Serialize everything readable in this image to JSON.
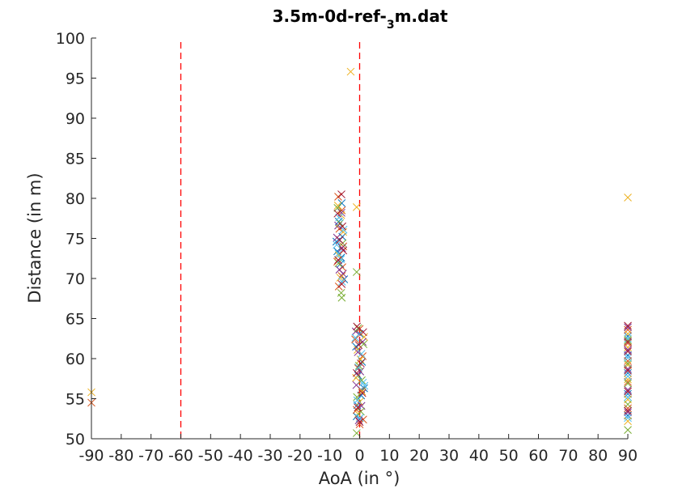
{
  "chart_data": {
    "type": "scatter",
    "title": {
      "prefix": "3.5m-0d-ref-",
      "sub": "3",
      "suffix": "m.dat"
    },
    "xlabel": "AoA (in °)",
    "ylabel": "Distance (in m)",
    "xlim": [
      -90,
      90
    ],
    "ylim": [
      50,
      100
    ],
    "xticks": [
      -90,
      -80,
      -70,
      -60,
      -50,
      -40,
      -30,
      -20,
      -10,
      0,
      10,
      20,
      30,
      40,
      50,
      60,
      70,
      80,
      90
    ],
    "yticks": [
      50,
      55,
      60,
      65,
      70,
      75,
      80,
      85,
      90,
      95,
      100
    ],
    "grid": false,
    "marker": "x",
    "reference_lines": [
      {
        "x": -60,
        "color": "#ff0000",
        "style": "dashed"
      },
      {
        "x": 0,
        "color": "#ff0000",
        "style": "dashed"
      }
    ],
    "palette": [
      "#0072bd",
      "#d95319",
      "#edb120",
      "#7e2f8e",
      "#77ac30",
      "#4dbeee",
      "#a2142f"
    ],
    "series": [
      {
        "color": "#0072bd",
        "points": [
          [
            -6.5,
            71.8
          ],
          [
            -7.5,
            73.4
          ],
          [
            -5.8,
            75.2
          ],
          [
            -7,
            77.1
          ],
          [
            -6.2,
            72.6
          ],
          [
            -5.2,
            69.9
          ],
          [
            -7.8,
            74.6
          ],
          [
            -6,
            79.4
          ],
          [
            -1,
            52.8
          ],
          [
            0.5,
            55.4
          ],
          [
            -0.5,
            57.9
          ],
          [
            0.8,
            59.6
          ],
          [
            -1.2,
            61.5
          ],
          [
            0,
            63.1
          ],
          [
            -0.8,
            54.2
          ],
          [
            1.5,
            56.3
          ],
          [
            90,
            52.9
          ],
          [
            90,
            55.6
          ],
          [
            90,
            58.2
          ],
          [
            90,
            60.4
          ],
          [
            90,
            62.8
          ]
        ]
      },
      {
        "color": "#d95319",
        "points": [
          [
            -7,
            69
          ],
          [
            -6,
            70.3
          ],
          [
            -7.5,
            72.1
          ],
          [
            -5.5,
            74
          ],
          [
            -6.8,
            76.2
          ],
          [
            -6,
            78.5
          ],
          [
            -7.2,
            80.2
          ],
          [
            -5.8,
            71.4
          ],
          [
            0,
            51.8
          ],
          [
            -1,
            53.6
          ],
          [
            0.5,
            56.1
          ],
          [
            -0.5,
            58.8
          ],
          [
            1,
            60.3
          ],
          [
            -1.5,
            62.4
          ],
          [
            0,
            63.7
          ],
          [
            1.2,
            52.4
          ],
          [
            90,
            53.8
          ],
          [
            90,
            57.1
          ],
          [
            90,
            59.7
          ],
          [
            90,
            61.9
          ],
          [
            90,
            63.6
          ],
          [
            -90,
            54.5
          ]
        ]
      },
      {
        "color": "#edb120",
        "points": [
          [
            -3,
            95.8
          ],
          [
            -1,
            78.9
          ],
          [
            90,
            80.1
          ],
          [
            -90,
            55.8
          ],
          [
            -6.5,
            70.1
          ],
          [
            -7,
            72.9
          ],
          [
            -5.5,
            75.8
          ],
          [
            -6.2,
            77.9
          ],
          [
            -7.3,
            79.1
          ],
          [
            -0.5,
            53.1
          ],
          [
            0.8,
            55.9
          ],
          [
            -1.2,
            57.6
          ],
          [
            0.3,
            59.9
          ],
          [
            -0.7,
            61.1
          ],
          [
            1.5,
            62.7
          ],
          [
            0,
            54.6
          ],
          [
            90,
            52.2
          ],
          [
            90,
            54.9
          ],
          [
            90,
            57.4
          ],
          [
            90,
            59.2
          ],
          [
            90,
            61.4
          ],
          [
            90,
            63.1
          ]
        ]
      },
      {
        "color": "#7e2f8e",
        "points": [
          [
            -6.8,
            71.1
          ],
          [
            -5.9,
            73.8
          ],
          [
            -7.2,
            76.6
          ],
          [
            -6.1,
            78.2
          ],
          [
            -5.6,
            70.6
          ],
          [
            -7.6,
            75.1
          ],
          [
            -0.3,
            52.3
          ],
          [
            0.6,
            54.1
          ],
          [
            -1.1,
            56.7
          ],
          [
            0.2,
            58.4
          ],
          [
            -0.6,
            60.8
          ],
          [
            1,
            62.1
          ],
          [
            -1.3,
            63.4
          ],
          [
            90,
            53.3
          ],
          [
            90,
            56.1
          ],
          [
            90,
            58.7
          ],
          [
            90,
            61.1
          ],
          [
            90,
            63.9
          ]
        ]
      },
      {
        "color": "#77ac30",
        "points": [
          [
            -1,
            70.8
          ],
          [
            -6,
            67.6
          ],
          [
            -6.2,
            68.2
          ],
          [
            -7.1,
            71.9
          ],
          [
            -5.7,
            74.4
          ],
          [
            -6.6,
            76.9
          ],
          [
            -7.4,
            78.8
          ],
          [
            -1,
            50.7
          ],
          [
            0.4,
            53.4
          ],
          [
            -0.9,
            55.2
          ],
          [
            0.7,
            57.3
          ],
          [
            -0.2,
            59.1
          ],
          [
            1.3,
            61.8
          ],
          [
            -0.5,
            63.8
          ],
          [
            90,
            51.1
          ],
          [
            90,
            54.3
          ],
          [
            90,
            56.9
          ],
          [
            90,
            59.4
          ],
          [
            90,
            62.3
          ]
        ]
      },
      {
        "color": "#4dbeee",
        "points": [
          [
            -6.3,
            72.4
          ],
          [
            -7.7,
            74.2
          ],
          [
            -5.4,
            76.1
          ],
          [
            -6.9,
            77.6
          ],
          [
            -5.9,
            69.6
          ],
          [
            -7.1,
            73.1
          ],
          [
            0.1,
            52.6
          ],
          [
            -0.8,
            54.8
          ],
          [
            1.1,
            57
          ],
          [
            -0.4,
            58.9
          ],
          [
            0.6,
            60.6
          ],
          [
            -1.4,
            62.6
          ],
          [
            1.6,
            56.6
          ],
          [
            90,
            52.6
          ],
          [
            90,
            55.2
          ],
          [
            90,
            57.8
          ],
          [
            90,
            60.1
          ],
          [
            90,
            62.5
          ]
        ]
      },
      {
        "color": "#a2142f",
        "points": [
          [
            -6.1,
            80.5
          ],
          [
            -7.4,
            78.1
          ],
          [
            -5.8,
            76.5
          ],
          [
            -6.7,
            74.8
          ],
          [
            -7.2,
            72.3
          ],
          [
            -6,
            69.3
          ],
          [
            -5.5,
            73.5
          ],
          [
            0,
            52.1
          ],
          [
            -0.6,
            53.9
          ],
          [
            0.9,
            55.7
          ],
          [
            -1,
            58.2
          ],
          [
            0.4,
            59.4
          ],
          [
            -0.3,
            61.7
          ],
          [
            1.2,
            63.3
          ],
          [
            -0.9,
            64
          ],
          [
            90,
            53.5
          ],
          [
            90,
            55.9
          ],
          [
            90,
            58.5
          ],
          [
            90,
            60.9
          ],
          [
            90,
            62.1
          ],
          [
            90,
            64.1
          ]
        ]
      }
    ]
  }
}
